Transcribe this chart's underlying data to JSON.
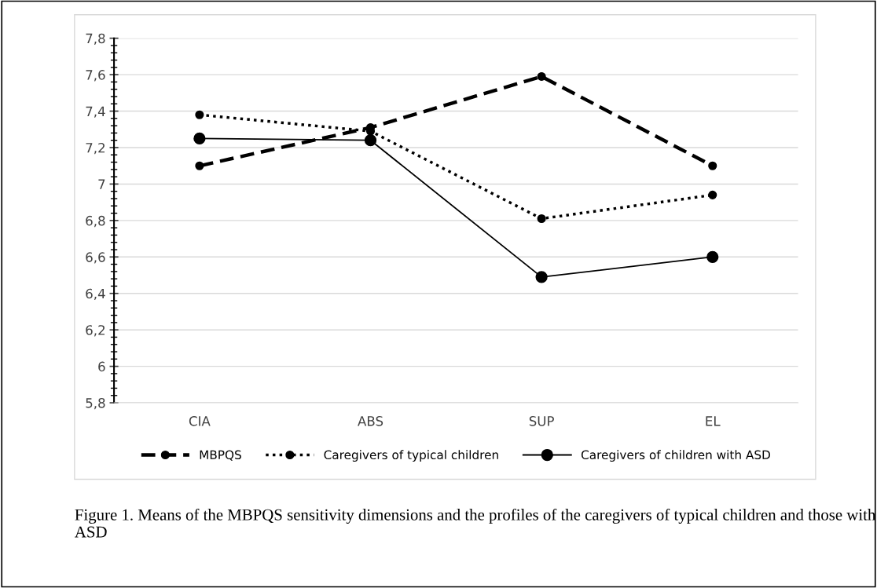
{
  "chart_data": {
    "type": "line",
    "categories": [
      "CIA",
      "ABS",
      "SUP",
      "EL"
    ],
    "series": [
      {
        "name": "MBPQS",
        "color": "#000000",
        "line_style": "dashed",
        "marker": "circle",
        "values": [
          7.1,
          7.31,
          7.59,
          7.1
        ]
      },
      {
        "name": "Caregivers of typical children",
        "color": "#000000",
        "line_style": "dotted",
        "marker": "circle",
        "values": [
          7.38,
          7.29,
          6.81,
          6.94
        ]
      },
      {
        "name": "Caregivers of children with ASD",
        "color": "#000000",
        "line_style": "solid",
        "marker": "circle",
        "values": [
          7.25,
          7.24,
          6.49,
          6.6
        ]
      }
    ],
    "ylim": [
      5.8,
      7.8
    ],
    "yticks": [
      {
        "value": 5.8,
        "label": "5,8"
      },
      {
        "value": 6,
        "label": "6"
      },
      {
        "value": 6.2,
        "label": "6,2"
      },
      {
        "value": 6.4,
        "label": "6,4"
      },
      {
        "value": 6.6,
        "label": "6,6"
      },
      {
        "value": 6.8,
        "label": "6,8"
      },
      {
        "value": 7,
        "label": "7"
      },
      {
        "value": 7.2,
        "label": "7,2"
      },
      {
        "value": 7.4,
        "label": "7,4"
      },
      {
        "value": 7.6,
        "label": "7,6"
      },
      {
        "value": 7.8,
        "label": "7,8"
      }
    ],
    "grid": "y",
    "legend": "bottom",
    "annotations": [
      "Figure 1. Means of the MBPQS sensitivity dimensions and the profiles of the caregivers of typical children and those with ASD"
    ]
  }
}
